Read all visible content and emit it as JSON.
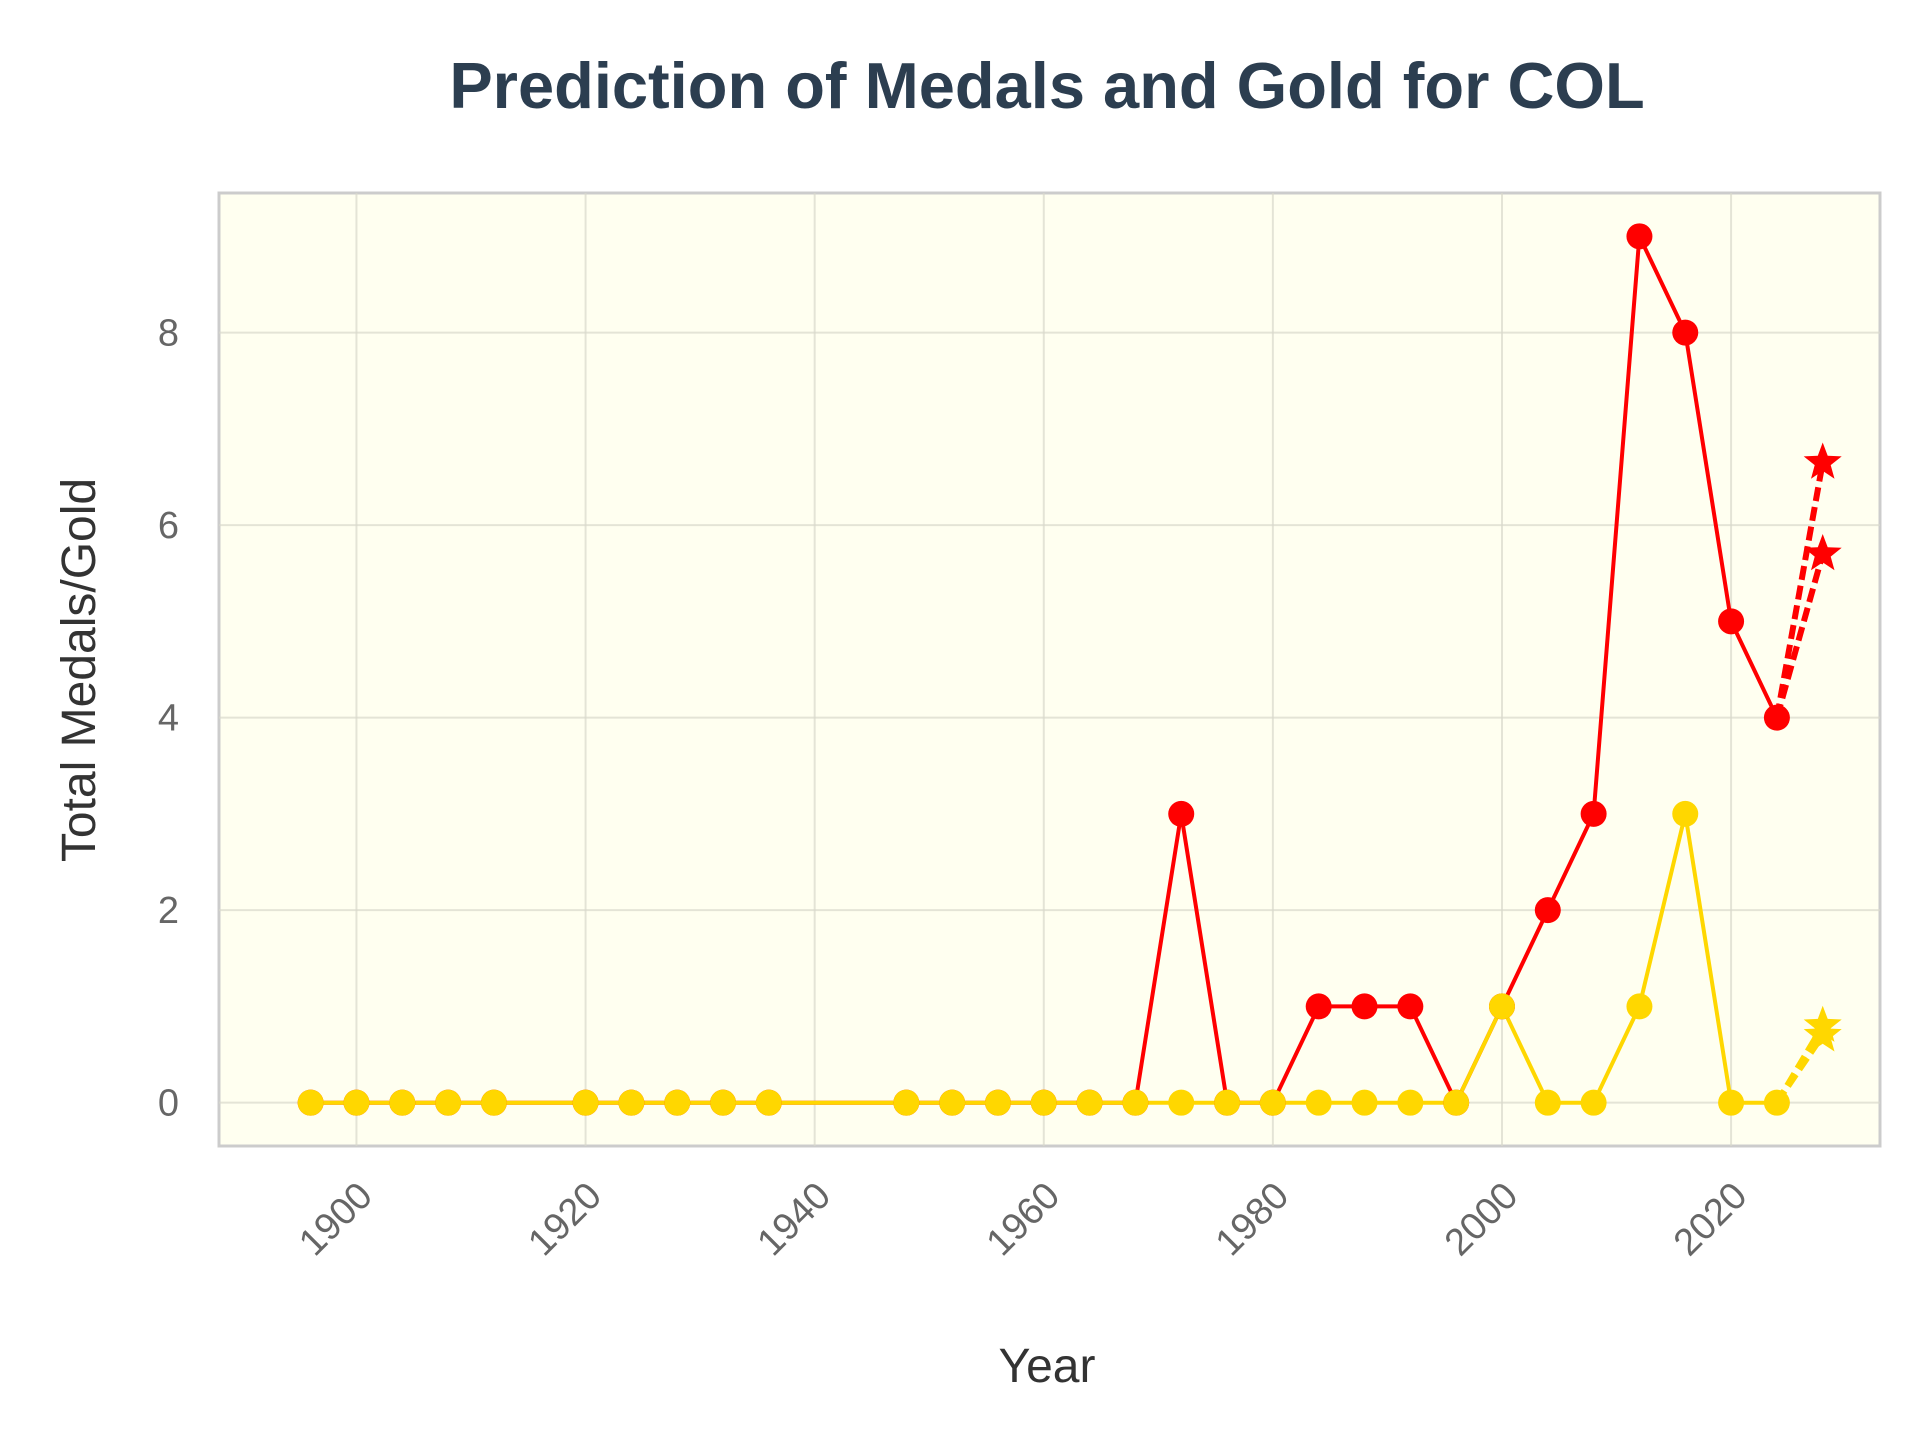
{
  "chart_data": {
    "type": "line",
    "title": "Prediction of Medals and Gold for COL",
    "xlabel": "Year",
    "ylabel": "Total Medals/Gold",
    "xlim": [
      1888,
      2033
    ],
    "ylim": [
      -0.45,
      9.45
    ],
    "xticks": [
      1900,
      1920,
      1940,
      1960,
      1980,
      2000,
      2020
    ],
    "yticks": [
      0,
      2,
      4,
      6,
      8
    ],
    "grid": true,
    "background_color": "#fffff0",
    "series": [
      {
        "color": "#ff0000",
        "marker": "circle",
        "line_style": "solid",
        "x": [
          1896,
          1900,
          1904,
          1908,
          1912,
          1920,
          1924,
          1928,
          1932,
          1936,
          1948,
          1952,
          1956,
          1960,
          1964,
          1968,
          1972,
          1976,
          1980,
          1984,
          1988,
          1992,
          1996,
          2000,
          2004,
          2008,
          2012,
          2016,
          2020,
          2024
        ],
        "y": [
          0,
          0,
          0,
          0,
          0,
          0,
          0,
          0,
          0,
          0,
          0,
          0,
          0,
          0,
          0,
          0,
          3,
          0,
          0,
          1,
          1,
          1,
          0,
          1,
          2,
          3,
          9,
          8,
          5,
          4
        ]
      },
      {
        "color": "#ffd700",
        "marker": "circle",
        "line_style": "solid",
        "x": [
          1896,
          1900,
          1904,
          1908,
          1912,
          1920,
          1924,
          1928,
          1932,
          1936,
          1948,
          1952,
          1956,
          1960,
          1964,
          1968,
          1972,
          1976,
          1980,
          1984,
          1988,
          1992,
          1996,
          2000,
          2004,
          2008,
          2012,
          2016,
          2020,
          2024
        ],
        "y": [
          0,
          0,
          0,
          0,
          0,
          0,
          0,
          0,
          0,
          0,
          0,
          0,
          0,
          0,
          0,
          0,
          0,
          0,
          0,
          0,
          0,
          0,
          0,
          1,
          0,
          0,
          1,
          3,
          0,
          0
        ]
      },
      {
        "color": "#ff0000",
        "marker": "star",
        "line_style": "dashed",
        "x": [
          2024,
          2028
        ],
        "y": [
          4,
          6.65
        ]
      },
      {
        "color": "#ff0000",
        "marker": "star",
        "line_style": "dashed",
        "x": [
          2024,
          2028
        ],
        "y": [
          4,
          5.7
        ]
      },
      {
        "color": "#ffd700",
        "marker": "star",
        "line_style": "dashed",
        "x": [
          2024,
          2028
        ],
        "y": [
          0,
          0.8
        ]
      },
      {
        "color": "#ffd700",
        "marker": "star",
        "line_style": "dashed",
        "x": [
          2024,
          2028
        ],
        "y": [
          0,
          0.7
        ]
      }
    ]
  }
}
